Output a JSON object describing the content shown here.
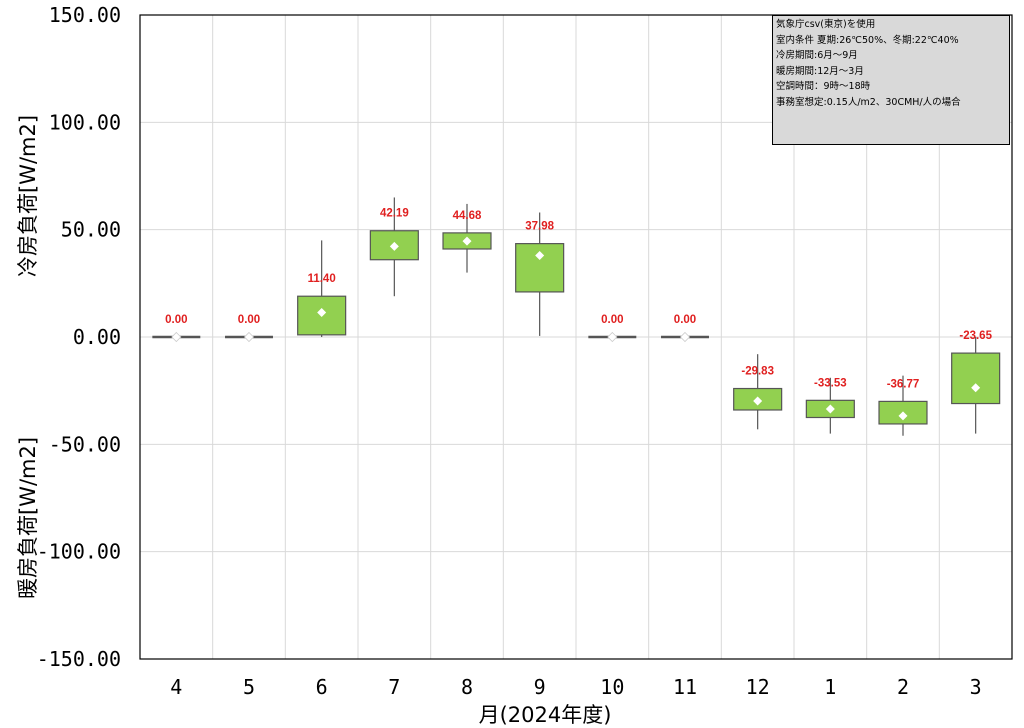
{
  "chart_data": {
    "type": "box",
    "xlabel": "月(2024年度)",
    "ylabel_top": "冷房負荷[W/m2]",
    "ylabel_bottom": "暖房負荷[W/m2]",
    "ylim": [
      -150,
      150
    ],
    "yticks": [
      150,
      100,
      50,
      0,
      -50,
      -100,
      -150
    ],
    "ytick_labels": [
      "150.00",
      "100.00",
      "50.00",
      "0.00",
      "-50.00",
      "-100.00",
      "-150.00"
    ],
    "categories": [
      "4",
      "5",
      "6",
      "7",
      "8",
      "9",
      "10",
      "11",
      "12",
      "1",
      "2",
      "3"
    ],
    "min": [
      0,
      0,
      0,
      19,
      30,
      0.5,
      0,
      0,
      -43,
      -45,
      -46,
      -45
    ],
    "q1": [
      0,
      0,
      1,
      36,
      41,
      21,
      0,
      0,
      -34,
      -37.5,
      -40.5,
      -31
    ],
    "q3": [
      0,
      0,
      19,
      49.5,
      48.5,
      43.5,
      0,
      0,
      -24,
      -29.5,
      -30,
      -7.5
    ],
    "max": [
      0,
      0,
      45,
      65,
      62,
      58,
      0,
      0,
      -8,
      -19,
      -18,
      0
    ],
    "mean": [
      0.0,
      0.0,
      11.4,
      42.19,
      44.68,
      37.98,
      0.0,
      0.0,
      -29.83,
      -33.53,
      -36.77,
      -23.65
    ],
    "mean_labels": [
      "0.00",
      "0.00",
      "11.40",
      "42.19",
      "44.68",
      "37.98",
      "0.00",
      "0.00",
      "-29.83",
      "-33.53",
      "-36.77",
      "-23.65"
    ],
    "grid": true,
    "colors": {
      "box_fill": "#92d050",
      "box_stroke": "#555555",
      "label": "#e02020",
      "grid": "#d9d9d9"
    }
  },
  "info_box": {
    "lines": [
      "気象庁csv(東京)を使用",
      "室内条件 夏期:26℃50%、冬期:22℃40%",
      "冷房期間:6月～9月",
      "暖房期間:12月～3月",
      "空調時間：9時～18時",
      "事務室想定:0.15人/m2、30CMH/人の場合"
    ],
    "placement": "top-right"
  }
}
